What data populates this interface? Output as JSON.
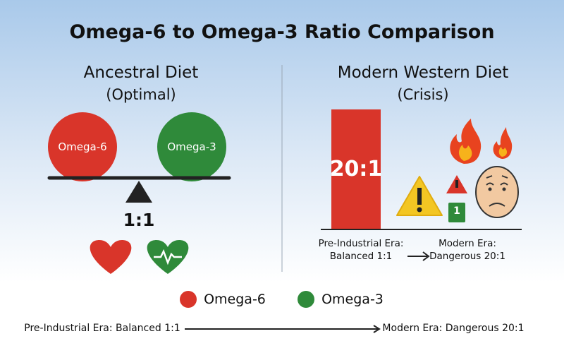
{
  "title": "Omega-6 to Omega-3 Ratio Comparison",
  "ancestral": {
    "heading": "Ancestral Diet",
    "subheading": "(Optimal)",
    "omega6_label": "Omega-6",
    "omega3_label": "Omega-3",
    "ratio": "1:1"
  },
  "modern": {
    "heading": "Modern Western Diet",
    "subheading": "(Crisis)",
    "ratio": "20:1",
    "badge": "1",
    "from_caption": "Pre-Industrial Era: Balanced 1:1",
    "to_caption": "Modern Era: Dangerous 20:1"
  },
  "legend": [
    {
      "label": "Omega-6"
    },
    {
      "label": "Omega-3"
    }
  ],
  "timeline": {
    "from": "Pre-Industrial Era: Balanced 1:1",
    "to": "Modern Era: Dangerous 20:1"
  }
}
